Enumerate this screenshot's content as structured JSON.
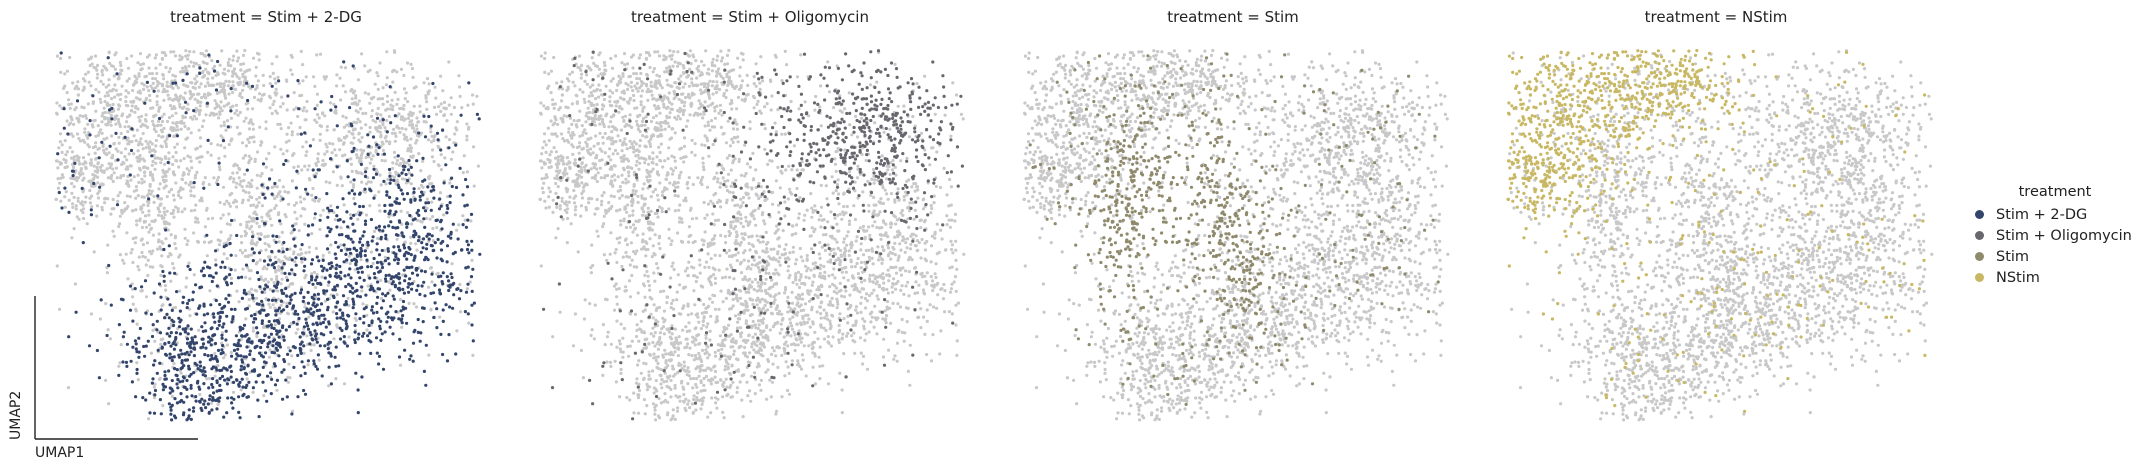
{
  "chart_data": [
    {
      "type": "scatter",
      "title": "treatment = Stim + 2-DG",
      "xlabel": "UMAP1",
      "ylabel": "UMAP2",
      "highlight": "Stim + 2-DG",
      "highlight_color": "#34456b",
      "background_color": "#c8c8c8"
    },
    {
      "type": "scatter",
      "title": "treatment = Stim + Oligomycin",
      "highlight": "Stim + Oligomycin",
      "highlight_color": "#67676e",
      "background_color": "#c8c8c8"
    },
    {
      "type": "scatter",
      "title": "treatment = Stim",
      "highlight": "Stim",
      "highlight_color": "#8f8a6c",
      "background_color": "#c8c8c8"
    },
    {
      "type": "scatter",
      "title": "treatment = NStim",
      "highlight": "NStim",
      "highlight_color": "#c9b863",
      "background_color": "#c8c8c8"
    }
  ],
  "legend": {
    "title": "treatment",
    "placement": "right",
    "items": [
      {
        "label": "Stim + 2-DG",
        "color": "#34456b"
      },
      {
        "label": "Stim + Oligomycin",
        "color": "#67676e"
      },
      {
        "label": "Stim",
        "color": "#8f8a6c"
      },
      {
        "label": "NStim",
        "color": "#c9b863"
      }
    ]
  }
}
